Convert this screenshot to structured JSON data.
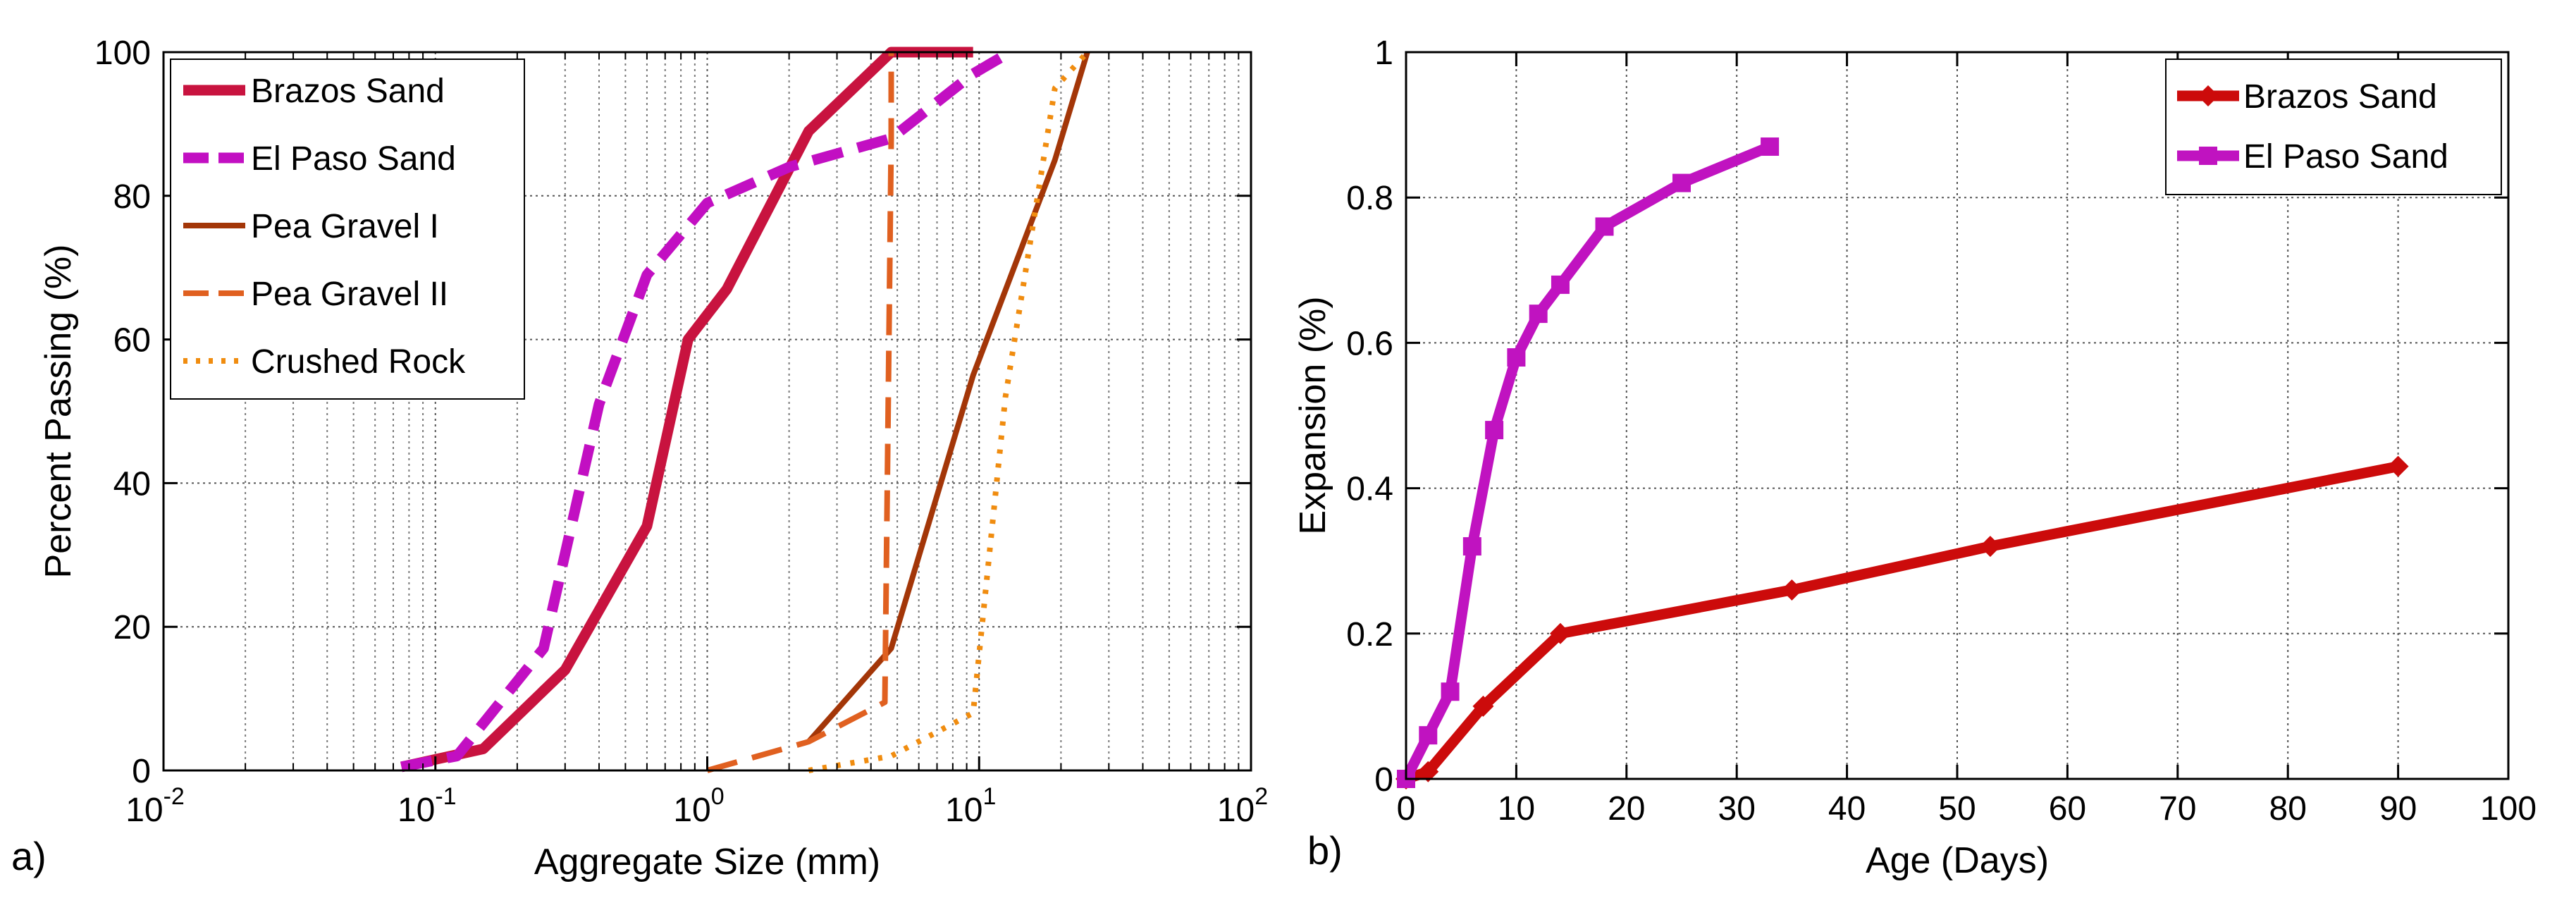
{
  "chart_data": [
    {
      "type": "line",
      "panel_label": "a)",
      "title": "",
      "xlabel": "Aggregate Size (mm)",
      "ylabel": "Percent Passing (%)",
      "xscale": "log",
      "xlim": [
        0.01,
        100
      ],
      "ylim": [
        0,
        100
      ],
      "grid": true,
      "legend_position": "top-left",
      "x_ticks": [
        {
          "base": "10",
          "exp": "-2",
          "value": 0.01
        },
        {
          "base": "10",
          "exp": "-1",
          "value": 0.1
        },
        {
          "base": "10",
          "exp": "0",
          "value": 1
        },
        {
          "base": "10",
          "exp": "1",
          "value": 10
        },
        {
          "base": "10",
          "exp": "2",
          "value": 100
        }
      ],
      "y_ticks": [
        "0",
        "20",
        "40",
        "60",
        "80",
        "100"
      ],
      "series": [
        {
          "name": "Brazos Sand",
          "color": "#c8133f",
          "style": "solid",
          "weight": "thick",
          "x": [
            0.075,
            0.15,
            0.3,
            0.6,
            0.85,
            1.18,
            2.36,
            4.75,
            9.5
          ],
          "y": [
            0.5,
            3,
            14,
            34,
            60,
            67,
            89,
            100,
            100
          ]
        },
        {
          "name": "El Paso Sand",
          "color": "#c20fc2",
          "style": "dashed",
          "weight": "thick",
          "x": [
            0.075,
            0.12,
            0.25,
            0.4,
            0.6,
            1.0,
            2.0,
            4.75,
            9.5,
            13
          ],
          "y": [
            0.5,
            2,
            17,
            51,
            69,
            79,
            84,
            88,
            97,
            100
          ]
        },
        {
          "name": "Pea Gravel I",
          "color": "#a33608",
          "style": "solid",
          "weight": "thin",
          "x": [
            2.36,
            4.75,
            9.5,
            19,
            25
          ],
          "y": [
            4,
            17,
            55,
            85,
            100
          ]
        },
        {
          "name": "Pea Gravel II",
          "color": "#e06020",
          "style": "dashed",
          "weight": "thin",
          "x": [
            1.0,
            2.36,
            4.5,
            4.75,
            4.75
          ],
          "y": [
            0,
            4,
            9.5,
            88,
            100
          ]
        },
        {
          "name": "Crushed Rock",
          "color": "#f08c0f",
          "style": "dotted",
          "weight": "thin",
          "x": [
            2.36,
            4.75,
            9.5,
            12.5,
            19,
            25
          ],
          "y": [
            0,
            2,
            8,
            52,
            95,
            100
          ]
        }
      ]
    },
    {
      "type": "line",
      "panel_label": "b)",
      "title": "",
      "xlabel": "Age (Days)",
      "ylabel": "Expansion (%)",
      "xscale": "linear",
      "xlim": [
        0,
        100
      ],
      "ylim": [
        0,
        1
      ],
      "grid": true,
      "legend_position": "top-right",
      "x_ticks": [
        "0",
        "10",
        "20",
        "30",
        "40",
        "50",
        "60",
        "70",
        "80",
        "90",
        "100"
      ],
      "y_ticks": [
        "0",
        "0.2",
        "0.4",
        "0.6",
        "0.8",
        "1"
      ],
      "series": [
        {
          "name": "Brazos Sand",
          "color": "#cc0b0b",
          "marker": "diamond",
          "x": [
            0,
            2,
            7,
            14,
            35,
            53,
            90
          ],
          "y": [
            0,
            0.01,
            0.1,
            0.2,
            0.26,
            0.32,
            0.43
          ]
        },
        {
          "name": "El Paso Sand",
          "color": "#c013c0",
          "marker": "square",
          "x": [
            0,
            2,
            4,
            6,
            8,
            10,
            12,
            14,
            18,
            25,
            33
          ],
          "y": [
            0,
            0.06,
            0.12,
            0.32,
            0.48,
            0.58,
            0.64,
            0.68,
            0.76,
            0.82,
            0.87
          ]
        }
      ]
    }
  ]
}
